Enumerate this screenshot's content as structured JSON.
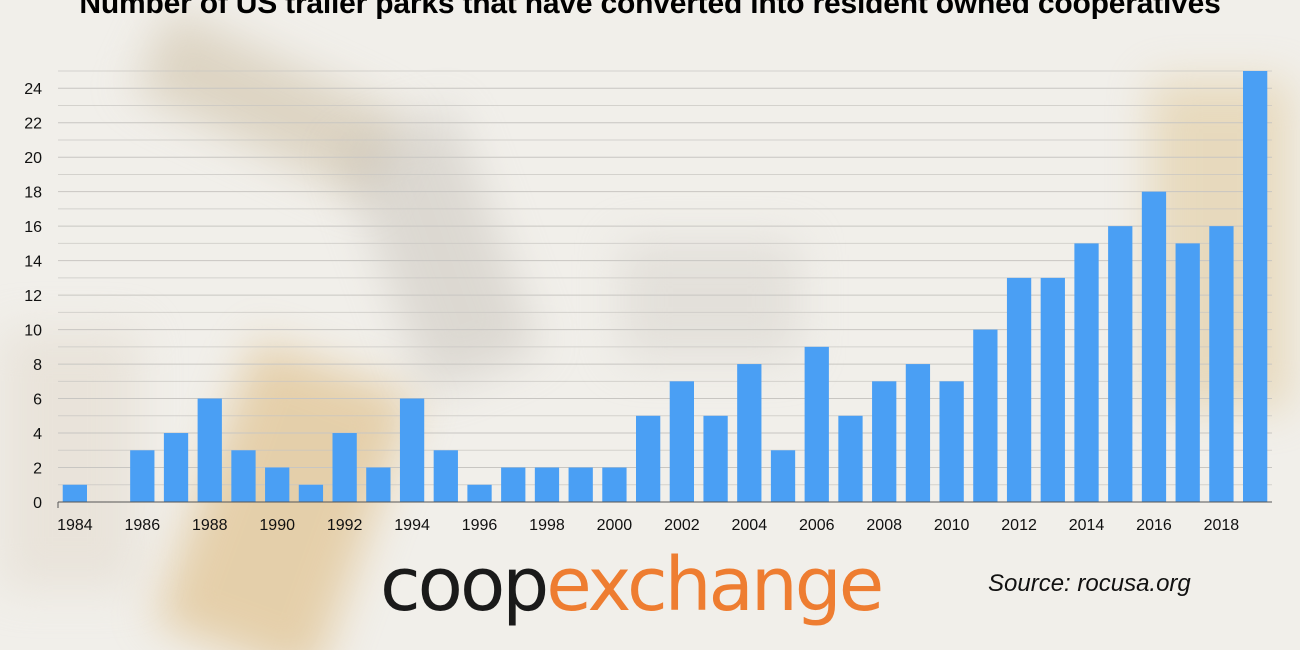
{
  "title": "Number of US trailer parks that have converted into resident owned cooperatives",
  "source": "Source: rocusa.org",
  "logo": {
    "part1": "coop",
    "part2": "exchange",
    "colors": [
      "#1a1a1a",
      "#ee7d31"
    ]
  },
  "colors": {
    "bar": "#4a9ff4",
    "grid": "#c8c6c2",
    "axis": "#555555"
  },
  "chart_data": {
    "type": "bar",
    "title": "Number of US trailer parks that have converted into resident owned cooperatives",
    "xlabel": "",
    "ylabel": "",
    "categories": [
      "1984",
      "1985",
      "1986",
      "1987",
      "1988",
      "1989",
      "1990",
      "1991",
      "1992",
      "1993",
      "1994",
      "1995",
      "1996",
      "1997",
      "1998",
      "1999",
      "2000",
      "2001",
      "2002",
      "2003",
      "2004",
      "2005",
      "2006",
      "2007",
      "2008",
      "2009",
      "2010",
      "2011",
      "2012",
      "2013",
      "2014",
      "2015",
      "2016",
      "2017",
      "2018",
      "2019"
    ],
    "values": [
      1,
      0,
      3,
      4,
      6,
      3,
      2,
      1,
      4,
      2,
      6,
      3,
      1,
      2,
      2,
      2,
      2,
      5,
      7,
      5,
      8,
      3,
      9,
      5,
      7,
      8,
      7,
      10,
      13,
      13,
      15,
      16,
      18,
      15,
      16,
      25
    ],
    "x_tick_labels": [
      "1984",
      "1986",
      "1988",
      "1990",
      "1992",
      "1994",
      "1996",
      "1998",
      "2000",
      "2002",
      "2004",
      "2006",
      "2008",
      "2010",
      "2012",
      "2014",
      "2016",
      "2018"
    ],
    "y_ticks": [
      0,
      2,
      4,
      6,
      8,
      10,
      12,
      14,
      16,
      18,
      20,
      22,
      24
    ],
    "ylim": [
      0,
      25
    ],
    "grid": true,
    "legend": "none"
  }
}
